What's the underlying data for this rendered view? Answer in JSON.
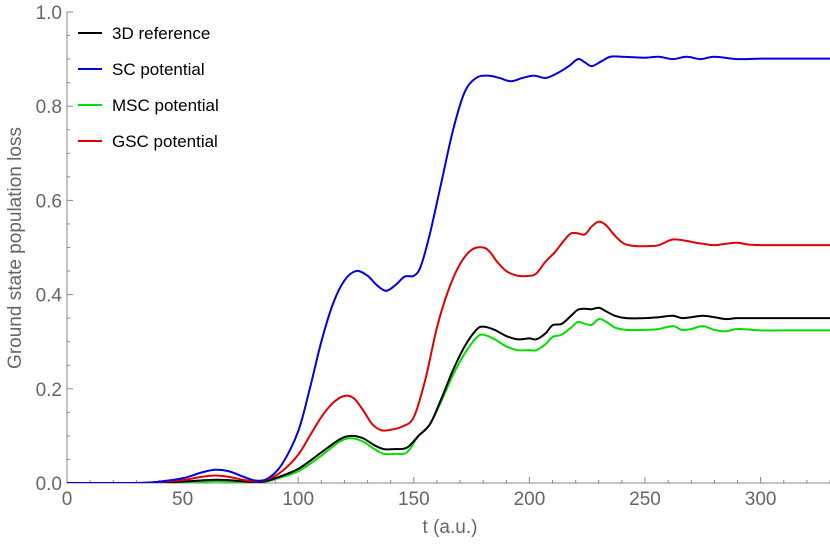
{
  "chart_data": {
    "type": "line",
    "title": "",
    "xlabel": "t (a.u.)",
    "ylabel": "Ground state population loss",
    "xlim": [
      0,
      330
    ],
    "ylim": [
      0,
      1.0
    ],
    "x_ticks": [
      0,
      50,
      100,
      150,
      200,
      250,
      300
    ],
    "y_ticks": [
      0.0,
      0.2,
      0.4,
      0.6,
      0.8,
      1.0
    ],
    "x_tick_labels": [
      "0",
      "50",
      "100",
      "150",
      "200",
      "250",
      "300"
    ],
    "y_tick_labels": [
      "0.0",
      "0.2",
      "0.4",
      "0.6",
      "0.8",
      "1.0"
    ],
    "grid": false,
    "legend_position": "top-left",
    "series": [
      {
        "name": "3D reference",
        "color": "#000000",
        "points": [
          [
            0,
            0
          ],
          [
            30,
            0
          ],
          [
            40,
            0.001
          ],
          [
            50,
            0.003
          ],
          [
            60,
            0.006
          ],
          [
            65,
            0.007
          ],
          [
            70,
            0.006
          ],
          [
            80,
            0.002
          ],
          [
            85,
            0.003
          ],
          [
            90,
            0.01
          ],
          [
            100,
            0.03
          ],
          [
            110,
            0.065
          ],
          [
            118,
            0.093
          ],
          [
            123,
            0.1
          ],
          [
            128,
            0.095
          ],
          [
            133,
            0.08
          ],
          [
            137,
            0.072
          ],
          [
            142,
            0.072
          ],
          [
            147,
            0.075
          ],
          [
            152,
            0.1
          ],
          [
            157,
            0.125
          ],
          [
            162,
            0.18
          ],
          [
            167,
            0.24
          ],
          [
            172,
            0.29
          ],
          [
            177,
            0.325
          ],
          [
            180,
            0.332
          ],
          [
            185,
            0.325
          ],
          [
            190,
            0.312
          ],
          [
            195,
            0.305
          ],
          [
            200,
            0.307
          ],
          [
            203,
            0.305
          ],
          [
            207,
            0.318
          ],
          [
            210,
            0.335
          ],
          [
            214,
            0.338
          ],
          [
            218,
            0.355
          ],
          [
            221,
            0.368
          ],
          [
            224,
            0.37
          ],
          [
            227,
            0.369
          ],
          [
            230,
            0.372
          ],
          [
            233,
            0.365
          ],
          [
            237,
            0.355
          ],
          [
            242,
            0.35
          ],
          [
            250,
            0.35
          ],
          [
            256,
            0.352
          ],
          [
            262,
            0.355
          ],
          [
            266,
            0.35
          ],
          [
            270,
            0.352
          ],
          [
            275,
            0.355
          ],
          [
            280,
            0.352
          ],
          [
            285,
            0.348
          ],
          [
            290,
            0.35
          ],
          [
            300,
            0.35
          ],
          [
            310,
            0.35
          ],
          [
            330,
            0.35
          ]
        ]
      },
      {
        "name": "SC potential",
        "color": "#0000e0",
        "points": [
          [
            0,
            0
          ],
          [
            30,
            0
          ],
          [
            40,
            0.003
          ],
          [
            50,
            0.01
          ],
          [
            58,
            0.022
          ],
          [
            64,
            0.028
          ],
          [
            70,
            0.025
          ],
          [
            77,
            0.012
          ],
          [
            82,
            0.005
          ],
          [
            87,
            0.01
          ],
          [
            93,
            0.04
          ],
          [
            100,
            0.11
          ],
          [
            105,
            0.2
          ],
          [
            110,
            0.3
          ],
          [
            115,
            0.38
          ],
          [
            120,
            0.43
          ],
          [
            125,
            0.45
          ],
          [
            130,
            0.44
          ],
          [
            134,
            0.42
          ],
          [
            138,
            0.408
          ],
          [
            142,
            0.42
          ],
          [
            146,
            0.438
          ],
          [
            150,
            0.44
          ],
          [
            153,
            0.46
          ],
          [
            157,
            0.53
          ],
          [
            162,
            0.64
          ],
          [
            167,
            0.75
          ],
          [
            172,
            0.83
          ],
          [
            177,
            0.86
          ],
          [
            182,
            0.865
          ],
          [
            187,
            0.86
          ],
          [
            192,
            0.853
          ],
          [
            197,
            0.86
          ],
          [
            202,
            0.865
          ],
          [
            207,
            0.86
          ],
          [
            212,
            0.87
          ],
          [
            217,
            0.885
          ],
          [
            221,
            0.9
          ],
          [
            224,
            0.893
          ],
          [
            227,
            0.885
          ],
          [
            231,
            0.895
          ],
          [
            235,
            0.905
          ],
          [
            240,
            0.905
          ],
          [
            250,
            0.903
          ],
          [
            256,
            0.905
          ],
          [
            262,
            0.9
          ],
          [
            268,
            0.905
          ],
          [
            274,
            0.9
          ],
          [
            280,
            0.905
          ],
          [
            290,
            0.9
          ],
          [
            300,
            0.901
          ],
          [
            310,
            0.901
          ],
          [
            330,
            0.901
          ]
        ]
      },
      {
        "name": "MSC potential",
        "color": "#00e000",
        "points": [
          [
            0,
            0
          ],
          [
            30,
            0
          ],
          [
            40,
            0.001
          ],
          [
            50,
            0.002
          ],
          [
            60,
            0.003
          ],
          [
            65,
            0.004
          ],
          [
            70,
            0.003
          ],
          [
            80,
            0.001
          ],
          [
            85,
            0.002
          ],
          [
            90,
            0.008
          ],
          [
            100,
            0.025
          ],
          [
            110,
            0.058
          ],
          [
            118,
            0.088
          ],
          [
            123,
            0.095
          ],
          [
            128,
            0.088
          ],
          [
            133,
            0.072
          ],
          [
            137,
            0.062
          ],
          [
            142,
            0.062
          ],
          [
            147,
            0.065
          ],
          [
            152,
            0.1
          ],
          [
            157,
            0.125
          ],
          [
            162,
            0.175
          ],
          [
            167,
            0.23
          ],
          [
            172,
            0.275
          ],
          [
            177,
            0.308
          ],
          [
            180,
            0.315
          ],
          [
            185,
            0.305
          ],
          [
            190,
            0.29
          ],
          [
            195,
            0.282
          ],
          [
            200,
            0.282
          ],
          [
            203,
            0.282
          ],
          [
            207,
            0.295
          ],
          [
            210,
            0.31
          ],
          [
            214,
            0.315
          ],
          [
            218,
            0.33
          ],
          [
            221,
            0.342
          ],
          [
            224,
            0.338
          ],
          [
            227,
            0.336
          ],
          [
            230,
            0.348
          ],
          [
            233,
            0.343
          ],
          [
            237,
            0.33
          ],
          [
            242,
            0.325
          ],
          [
            250,
            0.325
          ],
          [
            256,
            0.327
          ],
          [
            262,
            0.333
          ],
          [
            266,
            0.325
          ],
          [
            270,
            0.327
          ],
          [
            275,
            0.333
          ],
          [
            280,
            0.325
          ],
          [
            285,
            0.322
          ],
          [
            290,
            0.327
          ],
          [
            300,
            0.324
          ],
          [
            310,
            0.324
          ],
          [
            330,
            0.324
          ]
        ]
      },
      {
        "name": "GSC potential",
        "color": "#e00000",
        "points": [
          [
            0,
            0
          ],
          [
            30,
            0
          ],
          [
            40,
            0.002
          ],
          [
            50,
            0.006
          ],
          [
            58,
            0.013
          ],
          [
            64,
            0.016
          ],
          [
            70,
            0.013
          ],
          [
            77,
            0.006
          ],
          [
            82,
            0.003
          ],
          [
            87,
            0.008
          ],
          [
            93,
            0.025
          ],
          [
            100,
            0.06
          ],
          [
            105,
            0.1
          ],
          [
            110,
            0.14
          ],
          [
            115,
            0.17
          ],
          [
            120,
            0.185
          ],
          [
            124,
            0.18
          ],
          [
            128,
            0.155
          ],
          [
            132,
            0.125
          ],
          [
            136,
            0.112
          ],
          [
            140,
            0.113
          ],
          [
            145,
            0.12
          ],
          [
            150,
            0.14
          ],
          [
            155,
            0.22
          ],
          [
            160,
            0.33
          ],
          [
            165,
            0.41
          ],
          [
            170,
            0.465
          ],
          [
            175,
            0.495
          ],
          [
            180,
            0.5
          ],
          [
            183,
            0.49
          ],
          [
            186,
            0.47
          ],
          [
            190,
            0.45
          ],
          [
            195,
            0.44
          ],
          [
            200,
            0.44
          ],
          [
            203,
            0.445
          ],
          [
            207,
            0.47
          ],
          [
            211,
            0.49
          ],
          [
            215,
            0.515
          ],
          [
            218,
            0.53
          ],
          [
            221,
            0.53
          ],
          [
            224,
            0.528
          ],
          [
            227,
            0.545
          ],
          [
            230,
            0.555
          ],
          [
            233,
            0.548
          ],
          [
            237,
            0.525
          ],
          [
            241,
            0.508
          ],
          [
            246,
            0.503
          ],
          [
            252,
            0.503
          ],
          [
            256,
            0.505
          ],
          [
            262,
            0.517
          ],
          [
            268,
            0.514
          ],
          [
            272,
            0.51
          ],
          [
            275,
            0.508
          ],
          [
            280,
            0.505
          ],
          [
            285,
            0.508
          ],
          [
            290,
            0.51
          ],
          [
            295,
            0.506
          ],
          [
            300,
            0.505
          ],
          [
            310,
            0.505
          ],
          [
            330,
            0.505
          ]
        ]
      }
    ]
  }
}
